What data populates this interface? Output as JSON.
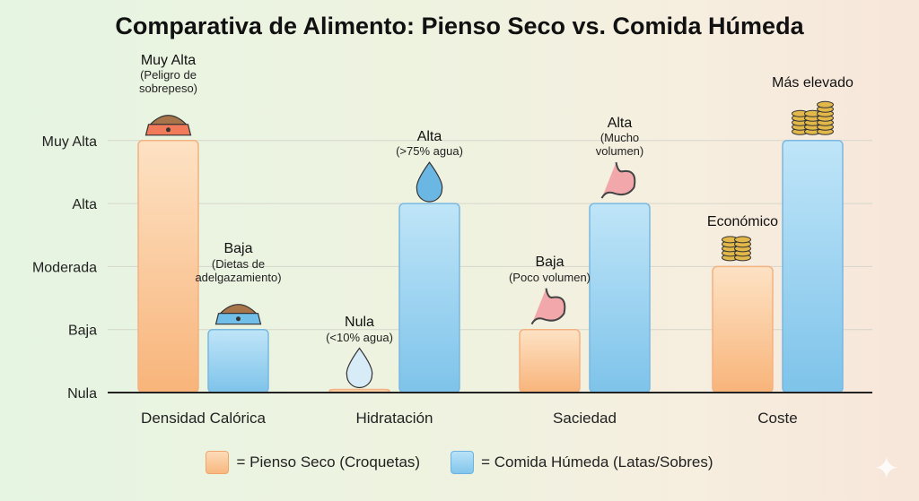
{
  "chart_data": {
    "type": "bar",
    "title": "Comparativa de Alimento: Pienso Seco vs. Comida Húmeda",
    "xlabel": "",
    "ylabel": "",
    "y_tick_labels": [
      "Nula",
      "Baja",
      "Moderada",
      "Alta",
      "Muy Alta"
    ],
    "ylim": [
      0,
      4
    ],
    "grid": true,
    "legend_position": "bottom",
    "categories": [
      "Densidad Calórica",
      "Hidratación",
      "Saciedad",
      "Coste"
    ],
    "series": [
      {
        "name": "= Pienso Seco (Croquetas)",
        "color": "#f8b77e",
        "values": [
          4,
          0.05,
          1,
          2
        ],
        "annotations": [
          {
            "label": "Muy Alta",
            "sub": "(Peligro de sobrepeso)",
            "icon": "food-bowl-icon"
          },
          {
            "label": "Nula",
            "sub": "(<10% agua)",
            "icon": "water-drop-icon"
          },
          {
            "label": "Baja",
            "sub": "(Poco volumen)",
            "icon": "stomach-icon"
          },
          {
            "label": "Económico",
            "sub": "",
            "icon": "coins-icon"
          }
        ]
      },
      {
        "name": "= Comida Húmeda (Latas/Sobres)",
        "color": "#82c6ec",
        "values": [
          1,
          3,
          3,
          4
        ],
        "annotations": [
          {
            "label": "Baja",
            "sub": "(Dietas de adelgazamiento)",
            "icon": "food-bowl-icon"
          },
          {
            "label": "Alta",
            "sub": "(>75% agua)",
            "icon": "water-drop-icon"
          },
          {
            "label": "Alta",
            "sub": "(Mucho volumen)",
            "icon": "stomach-icon"
          },
          {
            "label": "Más elevado",
            "sub": "",
            "icon": "coins-icon"
          }
        ]
      }
    ]
  }
}
